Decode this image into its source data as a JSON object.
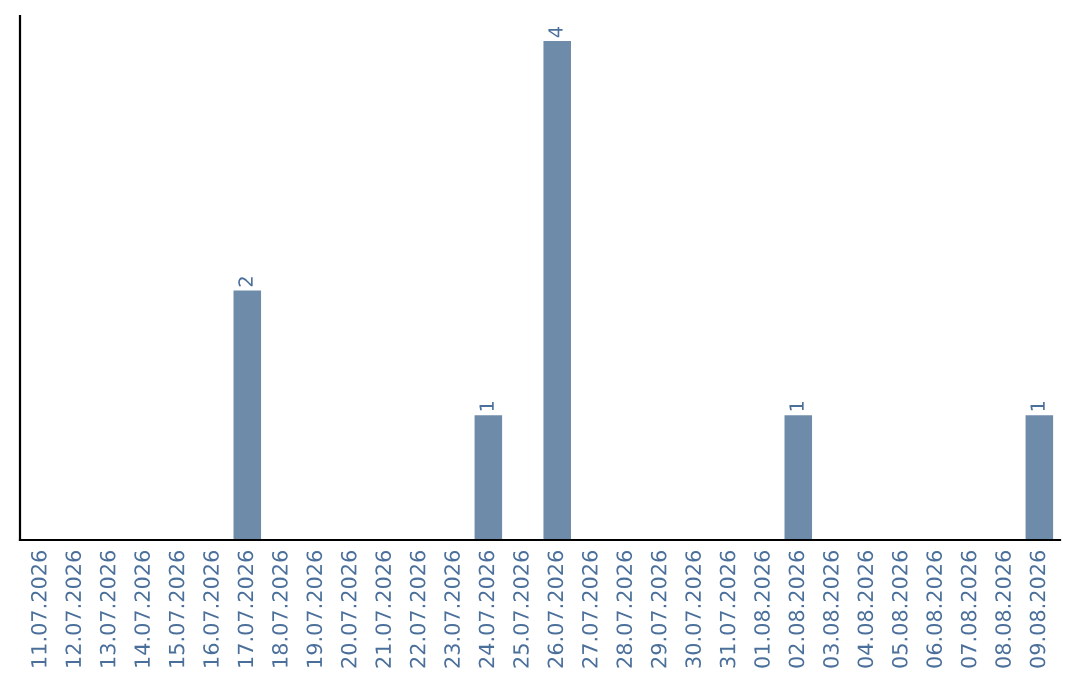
{
  "chart_data": {
    "type": "bar",
    "categories": [
      "11.07.2026",
      "12.07.2026",
      "13.07.2026",
      "14.07.2026",
      "15.07.2026",
      "16.07.2026",
      "17.07.2026",
      "18.07.2026",
      "19.07.2026",
      "20.07.2026",
      "21.07.2026",
      "22.07.2026",
      "23.07.2026",
      "24.07.2026",
      "25.07.2026",
      "26.07.2026",
      "27.07.2026",
      "28.07.2026",
      "29.07.2026",
      "30.07.2026",
      "31.07.2026",
      "01.08.2026",
      "02.08.2026",
      "03.08.2026",
      "04.08.2026",
      "05.08.2026",
      "06.08.2026",
      "07.08.2026",
      "08.08.2026",
      "09.08.2026"
    ],
    "values": [
      0,
      0,
      0,
      0,
      0,
      0,
      2,
      0,
      0,
      0,
      0,
      0,
      0,
      1,
      0,
      4,
      0,
      0,
      0,
      0,
      0,
      0,
      1,
      0,
      0,
      0,
      0,
      0,
      0,
      1
    ],
    "value_labels": [
      null,
      null,
      null,
      null,
      null,
      null,
      "2",
      null,
      null,
      null,
      null,
      null,
      null,
      "1",
      null,
      "4",
      null,
      null,
      null,
      null,
      null,
      null,
      "1",
      null,
      null,
      null,
      null,
      null,
      null,
      "1"
    ],
    "color": "#6e8caa",
    "ylim": [
      0,
      4.2
    ],
    "tick_labels": "x",
    "grid": false,
    "legend": false
  }
}
